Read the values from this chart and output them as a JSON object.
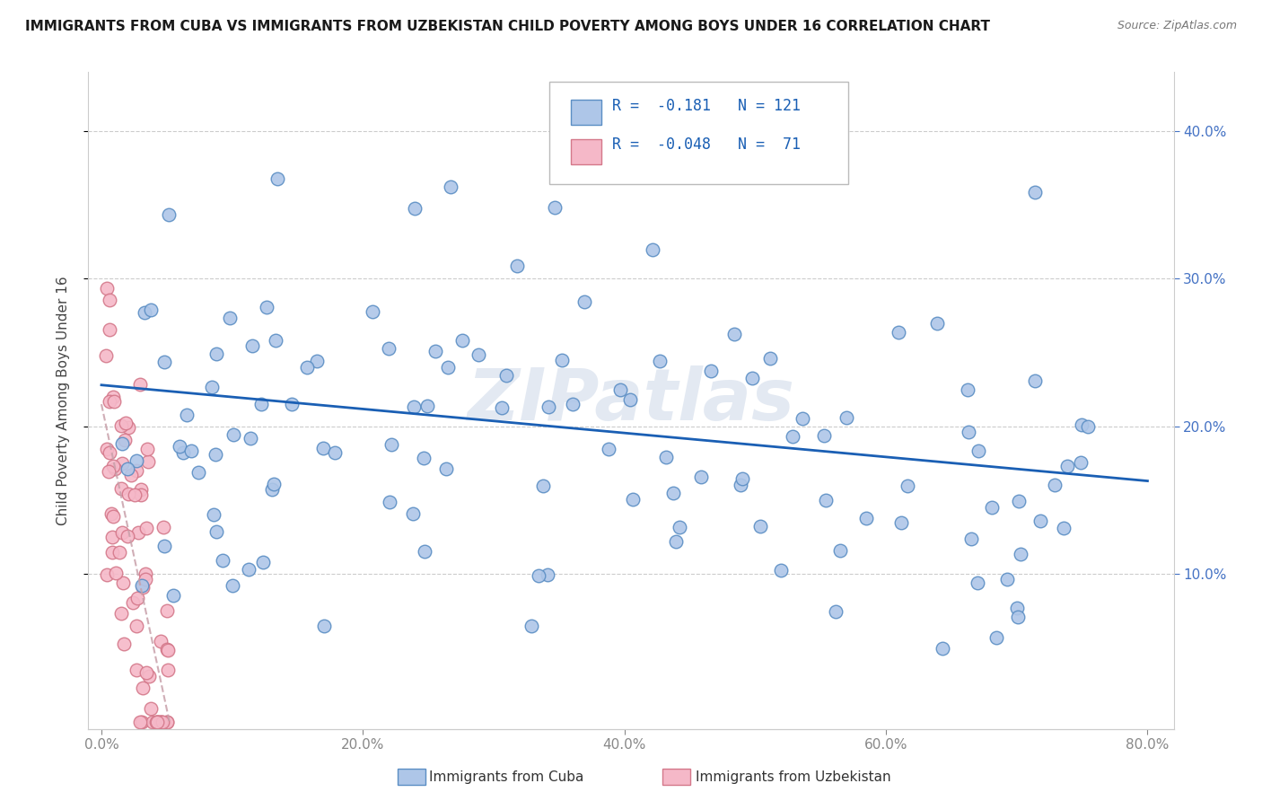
{
  "title": "IMMIGRANTS FROM CUBA VS IMMIGRANTS FROM UZBEKISTAN CHILD POVERTY AMONG BOYS UNDER 16 CORRELATION CHART",
  "source": "Source: ZipAtlas.com",
  "ylabel": "Child Poverty Among Boys Under 16",
  "x_tick_labels": [
    "0.0%",
    "20.0%",
    "40.0%",
    "60.0%",
    "80.0%"
  ],
  "x_tick_values": [
    0.0,
    0.2,
    0.4,
    0.6,
    0.8
  ],
  "y_tick_labels": [
    "10.0%",
    "20.0%",
    "30.0%",
    "40.0%"
  ],
  "y_tick_values": [
    0.1,
    0.2,
    0.3,
    0.4
  ],
  "xlim": [
    -0.01,
    0.82
  ],
  "ylim": [
    -0.005,
    0.44
  ],
  "cuba_color": "#aec6e8",
  "uzbekistan_color": "#f5b8c8",
  "cuba_edge_color": "#5b8ec4",
  "uzbekistan_edge_color": "#d4788a",
  "cuba_line_color": "#1a5fb4",
  "uzbekistan_line_color": "#c8a0aa",
  "R_cuba": -0.181,
  "N_cuba": 121,
  "R_uzbekistan": -0.048,
  "N_uzbekistan": 71,
  "watermark": "ZIPatlas",
  "legend_label_cuba": "Immigrants from Cuba",
  "legend_label_uzbekistan": "Immigrants from Uzbekistan",
  "cuba_line_x0": 0.0,
  "cuba_line_x1": 0.8,
  "cuba_line_y0": 0.228,
  "cuba_line_y1": 0.163,
  "uzb_line_x0": 0.0,
  "uzb_line_x1": 0.052,
  "uzb_line_y0": 0.215,
  "uzb_line_y1": 0.0,
  "seed": 77
}
